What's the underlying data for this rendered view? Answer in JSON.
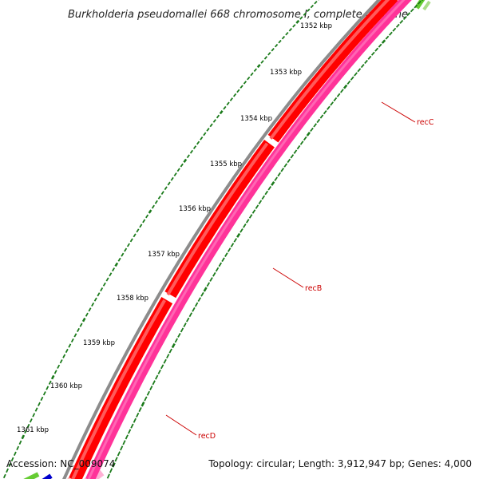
{
  "title": "Burkholderia pseudomallei 668 chromosome I, complete genome",
  "accession_label": "Accession: NC_009074",
  "summary_label": "Topology: circular; Length: 3,912,947 bp; Genes: 4,000",
  "ruler_ticks": [
    {
      "label": "1352 kbp"
    },
    {
      "label": "1353 kbp"
    },
    {
      "label": "1354 kbp"
    },
    {
      "label": "1355 kbp"
    },
    {
      "label": "1356 kbp"
    },
    {
      "label": "1357 kbp"
    },
    {
      "label": "1358 kbp"
    },
    {
      "label": "1359 kbp"
    },
    {
      "label": "1360 kbp"
    },
    {
      "label": "1361 kbp"
    }
  ],
  "genes": [
    {
      "name": "recC"
    },
    {
      "name": "recB"
    },
    {
      "name": "recD"
    }
  ],
  "colors": {
    "backbone": "#8c8c8c",
    "cds_forward": "#ff0000",
    "cds_forward_highlight": "#ffc0c0",
    "cds_reverse": "#ff3399",
    "cds_reverse_highlight": "#ffb0d4",
    "ruler": "#1a7a1a",
    "gene_label": "#cc0000",
    "edge_green": "#66cc33",
    "edge_blue": "#0000cc"
  }
}
